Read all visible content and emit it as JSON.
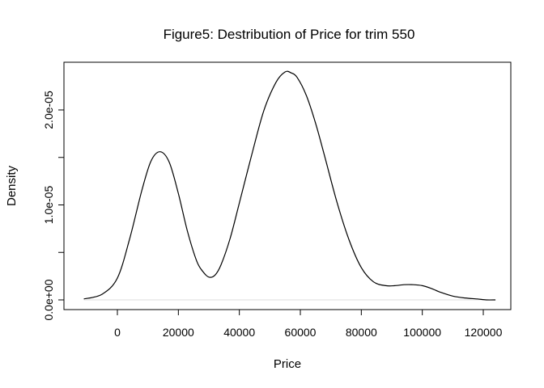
{
  "chart_data": {
    "type": "line",
    "title": "Figure5: Destribution of Price for trim 550",
    "xlabel": "Price",
    "ylabel": "Density",
    "xlim": [
      -12000,
      125000
    ],
    "ylim": [
      0,
      2.4e-05
    ],
    "x_ticks": [
      0,
      20000,
      40000,
      60000,
      80000,
      100000,
      120000
    ],
    "x_tick_labels": [
      "0",
      "20000",
      "40000",
      "60000",
      "80000",
      "100000",
      "120000"
    ],
    "y_ticks": [
      0,
      5e-06,
      1e-05,
      1.5e-05,
      2e-05
    ],
    "y_tick_labels": [
      "0.0e+00",
      "",
      "1.0e-05",
      "",
      "2.0e-05"
    ],
    "grid": false,
    "baseline": 0,
    "series": [
      {
        "line_color": "#000000",
        "baseline_color": "#dddddd",
        "x": [
          -11000,
          -5000,
          0,
          4000,
          8000,
          11000,
          14000,
          17000,
          20000,
          23000,
          26000,
          28000,
          30000,
          32000,
          34000,
          37000,
          40000,
          44000,
          48000,
          52000,
          55000,
          57000,
          59000,
          62000,
          65000,
          68000,
          72000,
          76000,
          80000,
          84000,
          88000,
          91000,
          94000,
          97000,
          100000,
          103000,
          106000,
          110000,
          114000,
          118000,
          121000,
          124000
        ],
        "y": [
          1e-07,
          6e-07,
          2.3e-06,
          6.4e-06,
          1.15e-05,
          1.46e-05,
          1.56e-05,
          1.45e-05,
          1.12e-05,
          7.2e-06,
          4.1e-06,
          3e-06,
          2.4e-06,
          2.6e-06,
          3.7e-06,
          6.5e-06,
          1.02e-05,
          1.52e-05,
          1.99e-05,
          2.29e-05,
          2.4e-05,
          2.39e-05,
          2.34e-05,
          2.15e-05,
          1.86e-05,
          1.51e-05,
          1.03e-05,
          6.3e-06,
          3.4e-06,
          1.9e-06,
          1.5e-06,
          1.5e-06,
          1.6e-06,
          1.6e-06,
          1.5e-06,
          1.2e-06,
          8e-07,
          4e-07,
          2e-07,
          1e-07,
          0,
          0
        ]
      }
    ]
  }
}
